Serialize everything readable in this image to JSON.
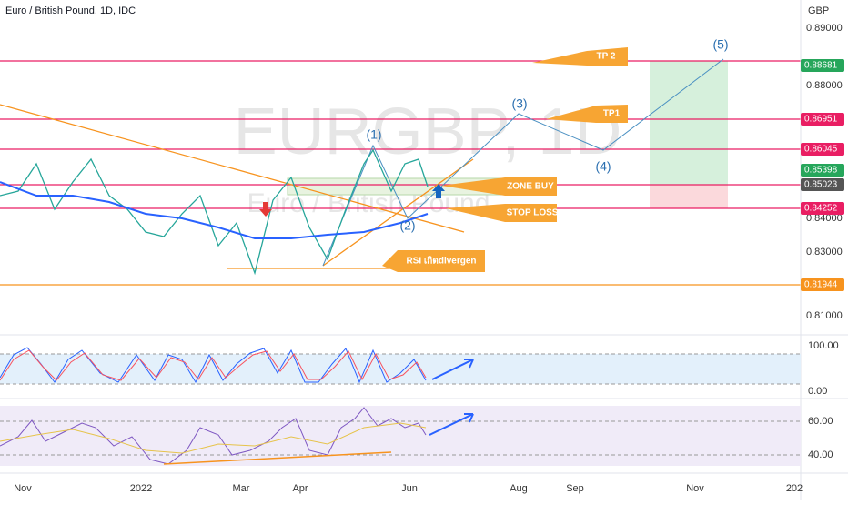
{
  "header": {
    "title": "Euro / British Pound, 1D, IDC"
  },
  "watermark": {
    "symbol": "EURGBP, 1D",
    "name": "Euro / British Pound"
  },
  "price_axis": {
    "currency": "GBP",
    "labels": [
      "0.89000",
      "0.88000",
      "0.84000",
      "0.83000",
      "0.81000"
    ]
  },
  "price_tags": [
    {
      "label": "0.88681",
      "color": "#26a65b"
    },
    {
      "label": "0.86951",
      "color": "#e91e63"
    },
    {
      "label": "0.86045",
      "color": "#e91e63"
    },
    {
      "label": "0.85398",
      "color": "#26a65b"
    },
    {
      "label": "0.85023",
      "color": "#555555"
    },
    {
      "label": "0.84252",
      "color": "#e91e63"
    },
    {
      "label": "0.81944",
      "color": "#f7931e"
    }
  ],
  "annotations": {
    "tp2": "TP 2",
    "tp1": "TP1",
    "zone_buy": "ZONE BUY",
    "stop_loss": "STOP LOSS",
    "rsi": "RSI เกิดdivergen"
  },
  "waves": [
    "(1)",
    "(2)",
    "(3)",
    "(4)",
    "(5)"
  ],
  "stoch_axis": [
    "100.00",
    "0.00"
  ],
  "rsi_axis": [
    "60.00",
    "40.00"
  ],
  "time_axis": [
    "Nov",
    "2022",
    "Mar",
    "Apr",
    "Jun",
    "Aug",
    "Sep",
    "Nov",
    "202"
  ]
}
